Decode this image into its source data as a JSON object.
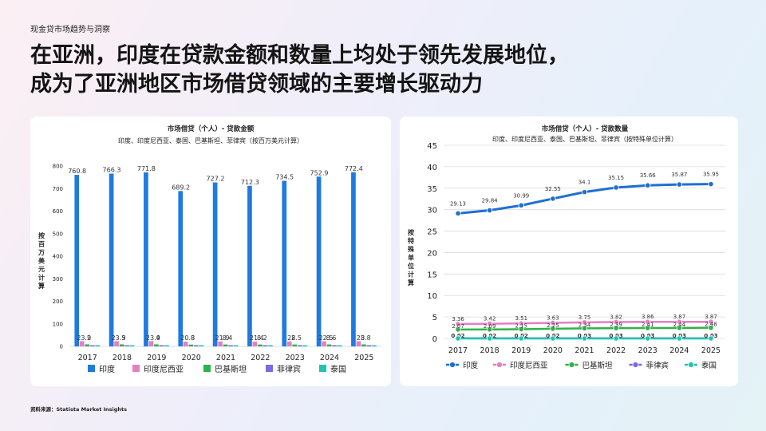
{
  "page": {
    "eyebrow": "现金贷市场趋势与洞察",
    "headline_line1": "在亚洲，印度在贷款金额和数量上均处于领先发展地位，",
    "headline_line2": "成为了亚洲地区市场借贷领域的主要增长驱动力",
    "source": "资料来源：Statista Market Insights"
  },
  "chart_data": [
    {
      "type": "bar",
      "title": "市场借贷（个人）- 贷款金额",
      "subtitle": "印度、印度尼西亚、泰国、巴基斯坦、菲律宾（按百万美元计算）",
      "ylabel": "按百万美元计算",
      "xlabel": "",
      "ylim": [
        0,
        800
      ],
      "yticks": [
        0,
        100,
        200,
        300,
        400,
        500,
        600,
        700,
        800
      ],
      "grid": false,
      "legend_position": "bottom",
      "categories": [
        "2017",
        "2018",
        "2019",
        "2020",
        "2021",
        "2022",
        "2023",
        "2024",
        "2025"
      ],
      "series": [
        {
          "name": "印度",
          "color": "#1f7ae0",
          "values": [
            760.8,
            766.3,
            771.8,
            689.2,
            727.2,
            712.3,
            734.5,
            752.9,
            772.4
          ],
          "labels": [
            "760.8",
            "766.3",
            "771.8",
            "689.2",
            "727.2",
            "712.3",
            "734.5",
            "752.9",
            "772.4"
          ]
        },
        {
          "name": "印度尼西亚",
          "color": "#e57fc3",
          "values": [
            23.2,
            23.3,
            23.4,
            20.8,
            21.9,
            21.4,
            22,
            22.5,
            23
          ],
          "labels": [
            "23.2",
            "23.3",
            "23.4",
            "20.8",
            "21.9",
            "21.4",
            "22",
            "22.5",
            "23"
          ]
        },
        {
          "name": "巴基斯坦",
          "color": "#2fb24a",
          "values": [
            9,
            9,
            9,
            8,
            8.4,
            8.2,
            8.5,
            8.6,
            8.8
          ],
          "labels": [
            "9",
            "9",
            "9",
            "8",
            "8.4",
            "8.2",
            "8.5",
            "8.6",
            "8.8"
          ]
        },
        {
          "name": "菲律宾",
          "color": "#7b6ae0",
          "values": [
            1,
            1,
            1,
            1,
            1,
            1,
            1,
            1,
            1
          ],
          "labels": []
        },
        {
          "name": "泰国",
          "color": "#21c4b0",
          "values": [
            1,
            1,
            1,
            1,
            1,
            1,
            1,
            1,
            1
          ],
          "labels": []
        }
      ]
    },
    {
      "type": "line",
      "title": "市场借贷（个人）- 贷款数量",
      "subtitle": "印度、印度尼西亚、泰国、巴基斯坦、菲律宾（按特殊单位计算）",
      "ylabel": "按特殊单位计算",
      "xlabel": "",
      "ylim": [
        0,
        45
      ],
      "yticks": [
        0,
        5,
        10,
        15,
        20,
        25,
        30,
        35,
        40,
        45
      ],
      "grid": true,
      "legend_position": "bottom",
      "categories": [
        "2017",
        "2018",
        "2019",
        "2020",
        "2021",
        "2022",
        "2023",
        "2024",
        "2025"
      ],
      "series": [
        {
          "name": "印度",
          "color": "#1f6fd0",
          "values": [
            29.13,
            29.84,
            30.99,
            32.55,
            34.1,
            35.15,
            35.66,
            35.87,
            35.95
          ],
          "labels": [
            "29.13",
            "29.84",
            "30.99",
            "32.55",
            "34.1",
            "35.15",
            "35.66",
            "35.87",
            "35.95"
          ]
        },
        {
          "name": "印度尼西亚",
          "color": "#e57fc3",
          "values": [
            3.36,
            3.42,
            3.51,
            3.63,
            3.75,
            3.82,
            3.86,
            3.87,
            3.87
          ],
          "labels": [
            "3.36",
            "3.42",
            "3.51",
            "3.63",
            "3.75",
            "3.82",
            "3.86",
            "3.87",
            "3.87"
          ]
        },
        {
          "name": "巴基斯坦",
          "color": "#2fb24a",
          "values": [
            2.07,
            2.09,
            2.15,
            2.25,
            2.34,
            2.39,
            2.41,
            2.44,
            2.48
          ],
          "labels": [
            "2.07",
            "2.09",
            "2.15",
            "2.25",
            "2.34",
            "2.39",
            "2.41",
            "2.44",
            "2.48"
          ]
        },
        {
          "name": "菲律宾",
          "color": "#7b6ae0",
          "values": [
            0.02,
            0.02,
            0.02,
            0.02,
            0.03,
            0.03,
            0.03,
            0.03,
            0.03
          ],
          "labels": [
            "0.02",
            "0.02",
            "0.02",
            "0.02",
            "0.03",
            "0.03",
            "0.03",
            "0.03",
            "0.03"
          ]
        },
        {
          "name": "泰国",
          "color": "#21c4b0",
          "values": [
            0,
            0,
            0,
            0,
            0,
            0,
            0,
            0,
            0
          ],
          "labels": []
        }
      ]
    }
  ]
}
